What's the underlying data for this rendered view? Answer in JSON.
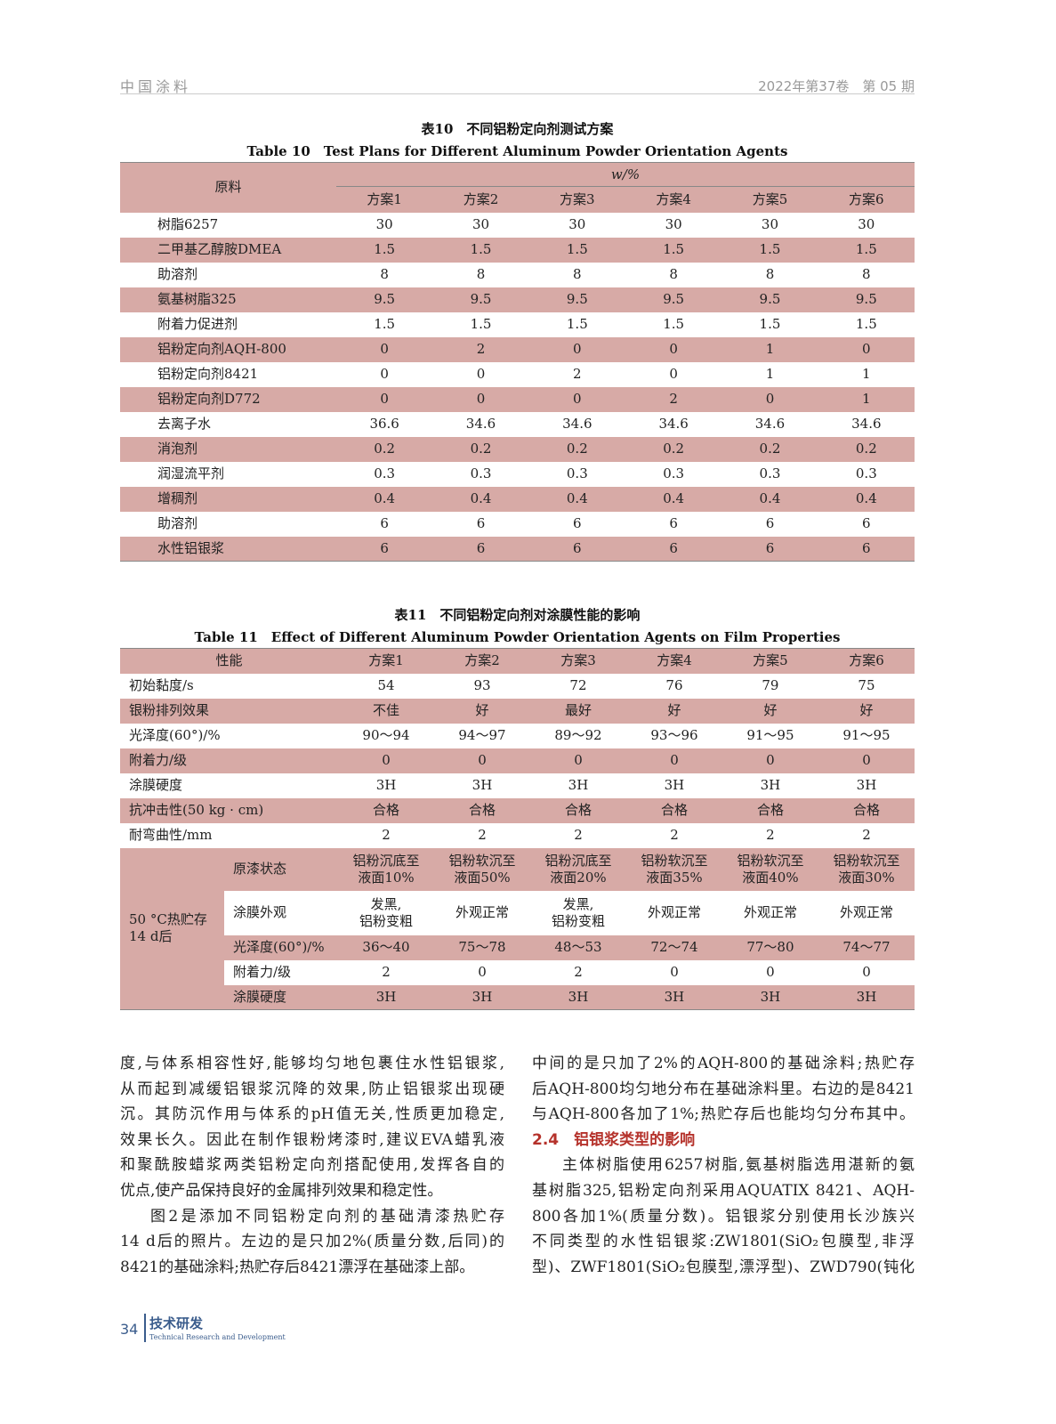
{
  "header": {
    "journal": "中国涂料",
    "issue": "2022年第37卷　第 05 期"
  },
  "table10": {
    "title_cn": "表10　不同铝粉定向剂测试方案",
    "title_en": "Table 10　Test Plans for Different Aluminum Powder Orientation Agents",
    "row_header": "原料",
    "unit": "w/%",
    "columns": [
      "方案1",
      "方案2",
      "方案3",
      "方案4",
      "方案5",
      "方案6"
    ],
    "rows": [
      {
        "name": "树脂6257",
        "values": [
          "30",
          "30",
          "30",
          "30",
          "30",
          "30"
        ]
      },
      {
        "name": "二甲基乙醇胺DMEA",
        "values": [
          "1.5",
          "1.5",
          "1.5",
          "1.5",
          "1.5",
          "1.5"
        ]
      },
      {
        "name": "助溶剂",
        "values": [
          "8",
          "8",
          "8",
          "8",
          "8",
          "8"
        ]
      },
      {
        "name": "氨基树脂325",
        "values": [
          "9.5",
          "9.5",
          "9.5",
          "9.5",
          "9.5",
          "9.5"
        ]
      },
      {
        "name": "附着力促进剂",
        "values": [
          "1.5",
          "1.5",
          "1.5",
          "1.5",
          "1.5",
          "1.5"
        ]
      },
      {
        "name": "铝粉定向剂AQH-800",
        "values": [
          "0",
          "2",
          "0",
          "0",
          "1",
          "0"
        ]
      },
      {
        "name": "铝粉定向剂8421",
        "values": [
          "0",
          "0",
          "2",
          "0",
          "1",
          "1"
        ]
      },
      {
        "name": "铝粉定向剂D772",
        "values": [
          "0",
          "0",
          "0",
          "2",
          "0",
          "1"
        ]
      },
      {
        "name": "去离子水",
        "values": [
          "36.6",
          "34.6",
          "34.6",
          "34.6",
          "34.6",
          "34.6"
        ]
      },
      {
        "name": "消泡剂",
        "values": [
          "0.2",
          "0.2",
          "0.2",
          "0.2",
          "0.2",
          "0.2"
        ]
      },
      {
        "name": "润湿流平剂",
        "values": [
          "0.3",
          "0.3",
          "0.3",
          "0.3",
          "0.3",
          "0.3"
        ]
      },
      {
        "name": "增稠剂",
        "values": [
          "0.4",
          "0.4",
          "0.4",
          "0.4",
          "0.4",
          "0.4"
        ]
      },
      {
        "name": "助溶剂",
        "values": [
          "6",
          "6",
          "6",
          "6",
          "6",
          "6"
        ]
      },
      {
        "name": "水性铝银浆",
        "values": [
          "6",
          "6",
          "6",
          "6",
          "6",
          "6"
        ]
      }
    ]
  },
  "table11": {
    "title_cn": "表11　不同铝粉定向剂对涂膜性能的影响",
    "title_en": "Table 11　Effect of Different Aluminum Powder Orientation Agents on Film Properties",
    "row_header": "性能",
    "columns": [
      "方案1",
      "方案2",
      "方案3",
      "方案4",
      "方案5",
      "方案6"
    ],
    "rows": [
      {
        "name": "初始黏度/s",
        "values": [
          "54",
          "93",
          "72",
          "76",
          "79",
          "75"
        ]
      },
      {
        "name": "银粉排列效果",
        "values": [
          "不佳",
          "好",
          "最好",
          "好",
          "好",
          "好"
        ]
      },
      {
        "name": "光泽度(60°)/%",
        "values": [
          "90～94",
          "94～97",
          "89～92",
          "93～96",
          "91～95",
          "91～95"
        ]
      },
      {
        "name": "附着力/级",
        "values": [
          "0",
          "0",
          "0",
          "0",
          "0",
          "0"
        ]
      },
      {
        "name": "涂膜硬度",
        "values": [
          "3H",
          "3H",
          "3H",
          "3H",
          "3H",
          "3H"
        ]
      },
      {
        "name": "抗冲击性(50 kg · cm)",
        "values": [
          "合格",
          "合格",
          "合格",
          "合格",
          "合格",
          "合格"
        ]
      },
      {
        "name": "耐弯曲性/mm",
        "values": [
          "2",
          "2",
          "2",
          "2",
          "2",
          "2"
        ]
      }
    ],
    "storage_group": "50 °C热贮存\n14 d后",
    "storage_rows": [
      {
        "name": "原漆状态",
        "values": [
          "铝粉沉底至\n液面10%",
          "铝粉软沉至\n液面50%",
          "铝粉沉底至\n液面20%",
          "铝粉软沉至\n液面35%",
          "铝粉软沉至\n液面40%",
          "铝粉软沉至\n液面30%"
        ]
      },
      {
        "name": "涂膜外观",
        "values": [
          "发黑,\n铝粉变粗",
          "外观正常",
          "发黑,\n铝粉变粗",
          "外观正常",
          "外观正常",
          "外观正常"
        ]
      },
      {
        "name": "光泽度(60°)/%",
        "values": [
          "36～40",
          "75～78",
          "48～53",
          "72～74",
          "77～80",
          "74～77"
        ]
      },
      {
        "name": "附着力/级",
        "values": [
          "2",
          "0",
          "2",
          "0",
          "0",
          "0"
        ]
      },
      {
        "name": "涂膜硬度",
        "values": [
          "3H",
          "3H",
          "3H",
          "3H",
          "3H",
          "3H"
        ]
      }
    ]
  },
  "body": {
    "left_lines": [
      "度,与体系相容性好,能够均匀地包裹住水性铝银浆,",
      "从而起到减缓铝银浆沉降的效果,防止铝银浆出现硬",
      "沉。其防沉作用与体系的pH值无关,性质更加稳定,",
      "效果长久。因此在制作银粉烤漆时,建议EVA蜡乳液",
      "和聚酰胺蜡浆两类铝粉定向剂搭配使用,发挥各自的",
      "优点,使产品保持良好的金属排列效果和稳定性。",
      "图2是添加不同铝粉定向剂的基础清漆热贮存",
      "14 d后的照片。左边的是只加2%(质量分数,后同)的",
      "8421的基础涂料;热贮存后8421漂浮在基础漆上部。"
    ],
    "right_lines": [
      "中间的是只加了2%的AQH-800的基础涂料;热贮存",
      "后AQH-800均匀地分布在基础涂料里。右边的是8421",
      "与AQH-800各加了1%;热贮存后也能均匀分布其中。",
      "2.4　铝银浆类型的影响",
      "主体树脂使用6257树脂,氨基树脂选用湛新的氨",
      "基树脂325,铝粉定向剂采用AQUATIX 8421、AQH-",
      "800各加1%(质量分数)。铝银浆分别使用长沙族兴",
      "不同类型的水性铝银浆:ZW1801(SiO₂包膜型,非浮",
      "型)、ZWF1801(SiO₂包膜型,漂浮型)、ZWD790(钝化"
    ]
  },
  "footer": {
    "page": "34",
    "section_cn": "技术研发",
    "section_en": "Technical Research and Development"
  },
  "colors": {
    "table_shade": "#d7aaa6",
    "section_heading": "#b5322b",
    "footer": "#3a5c8c"
  }
}
